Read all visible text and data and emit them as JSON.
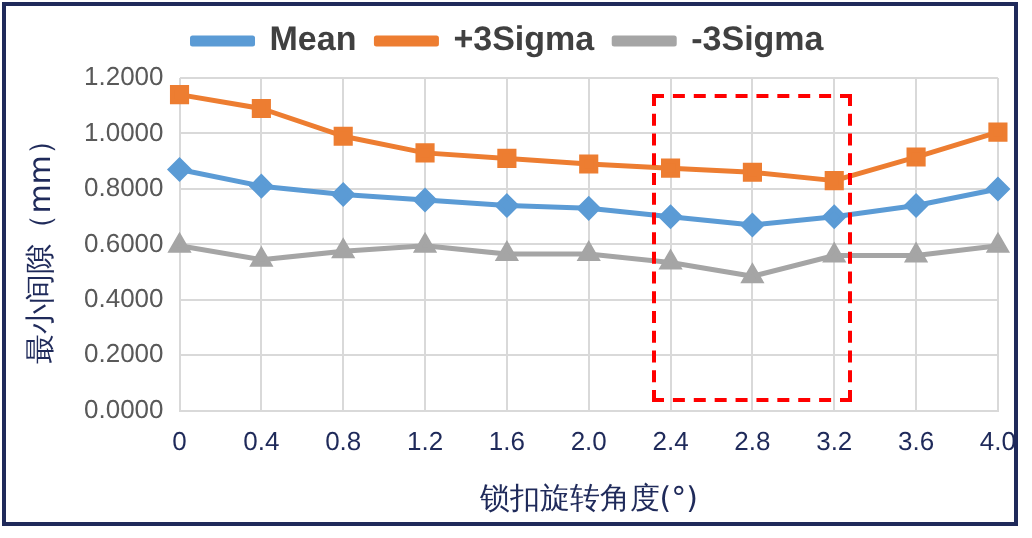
{
  "chart_data": {
    "type": "line",
    "xlabel": "锁扣旋转角度(°)",
    "ylabel": "最小间隙（mm）",
    "categories": [
      "0",
      "0.4",
      "0.8",
      "1.2",
      "1.6",
      "2.0",
      "2.4",
      "2.8",
      "3.2",
      "3.6",
      "4.0"
    ],
    "series": [
      {
        "name": "Mean",
        "color": "#5b9bd5",
        "marker": "diamond",
        "values": [
          0.87,
          0.81,
          0.78,
          0.76,
          0.74,
          0.73,
          0.7,
          0.67,
          0.7,
          0.74,
          0.8
        ]
      },
      {
        "name": "+3Sigma",
        "color": "#ed7d31",
        "marker": "square",
        "values": [
          1.14,
          1.09,
          0.99,
          0.93,
          0.91,
          0.89,
          0.875,
          0.86,
          0.83,
          0.915,
          1.005
        ]
      },
      {
        "name": "-3Sigma",
        "color": "#a5a5a5",
        "marker": "triangle",
        "values": [
          0.595,
          0.545,
          0.575,
          0.595,
          0.565,
          0.565,
          0.535,
          0.485,
          0.56,
          0.56,
          0.595
        ]
      }
    ],
    "ylim": [
      0,
      1.2
    ],
    "yticks": [
      {
        "value": 0,
        "label": "0.0000"
      },
      {
        "value": 0.2,
        "label": "0.2000"
      },
      {
        "value": 0.4,
        "label": "0.4000"
      },
      {
        "value": 0.6,
        "label": "0.6000"
      },
      {
        "value": 0.8,
        "label": "0.8000"
      },
      {
        "value": 1.0,
        "label": "1.0000"
      },
      {
        "value": 1.2,
        "label": "1.2000"
      }
    ],
    "grid": true,
    "legend": "top",
    "line_style": "solid"
  }
}
